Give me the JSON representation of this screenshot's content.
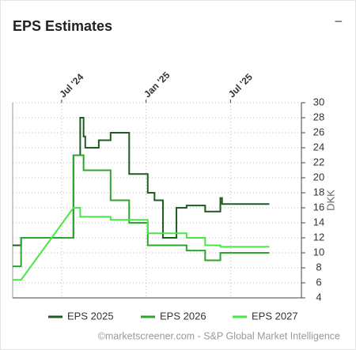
{
  "header": {
    "title": "EPS Estimates",
    "collapse_icon": "−"
  },
  "chart_data": {
    "type": "line",
    "y_label": "DKK",
    "source": "©marketscreener.com - S&P Global Market Intelligence",
    "xlim": [
      2024.21,
      2025.92
    ],
    "xticks": [
      {
        "value": 2024.5,
        "label": "Jul '24"
      },
      {
        "value": 2025.0,
        "label": "Jan '25"
      },
      {
        "value": 2025.5,
        "label": "Jul '25"
      }
    ],
    "ylim": [
      4,
      30
    ],
    "yticks": [
      4,
      6,
      8,
      10,
      12,
      14,
      16,
      18,
      20,
      22,
      24,
      26,
      28,
      30
    ],
    "grid": true,
    "legend": "bottom",
    "series": [
      {
        "name": "EPS 2025",
        "color": "#1f5c1f",
        "x": [
          2024.21,
          2024.26,
          2024.26,
          2024.57,
          2024.57,
          2024.61,
          2024.61,
          2024.63,
          2024.63,
          2024.64,
          2024.64,
          2024.72,
          2024.72,
          2024.79,
          2024.79,
          2024.9,
          2024.9,
          2025.01,
          2025.01,
          2025.05,
          2025.05,
          2025.1,
          2025.1,
          2025.18,
          2025.18,
          2025.24,
          2025.24,
          2025.35,
          2025.35,
          2025.44,
          2025.44,
          2025.45,
          2025.45,
          2025.73
        ],
        "values": [
          11,
          11,
          12,
          12,
          23,
          23,
          28,
          28,
          25.5,
          25.5,
          24,
          24,
          25,
          25,
          26,
          26,
          20.5,
          20.5,
          18,
          18,
          17,
          17,
          12,
          12,
          16,
          16,
          16.3,
          16.3,
          15.5,
          15.5,
          17.3,
          17.3,
          16.5,
          16.5
        ]
      },
      {
        "name": "EPS 2026",
        "color": "#2ca62c",
        "x": [
          2024.21,
          2024.26,
          2024.26,
          2024.57,
          2024.57,
          2024.63,
          2024.63,
          2024.79,
          2024.79,
          2024.9,
          2024.9,
          2025.01,
          2025.01,
          2025.24,
          2025.24,
          2025.35,
          2025.35,
          2025.44,
          2025.44,
          2025.73
        ],
        "values": [
          8.2,
          8.2,
          12,
          12,
          23,
          23,
          21,
          21,
          17,
          17,
          14,
          14,
          11,
          11,
          10.3,
          10.3,
          9,
          9,
          10,
          10
        ]
      },
      {
        "name": "EPS 2027",
        "color": "#45e845",
        "x": [
          2024.21,
          2024.26,
          2024.57,
          2024.61,
          2024.61,
          2024.79,
          2024.79,
          2025.01,
          2025.01,
          2025.24,
          2025.24,
          2025.35,
          2025.35,
          2025.44,
          2025.44,
          2025.73
        ],
        "values": [
          6.4,
          6.4,
          16,
          16,
          14.8,
          14.8,
          14.4,
          14.4,
          12.6,
          12.6,
          12,
          12,
          11,
          11,
          10.8,
          10.8
        ]
      }
    ]
  }
}
